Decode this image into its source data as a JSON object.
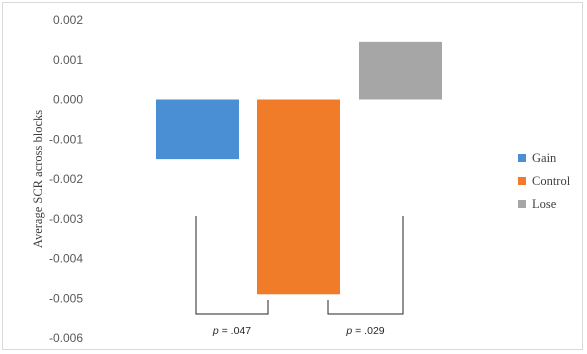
{
  "chart_data": {
    "type": "bar",
    "ylabel": "Average SCR across blocks",
    "ylim": [
      -0.006,
      0.002
    ],
    "yticks": [
      0.002,
      0.001,
      0.0,
      -0.001,
      -0.002,
      -0.003,
      -0.004,
      -0.005,
      -0.006
    ],
    "ytick_labels": [
      "0.002",
      "0.001",
      "0.000",
      "-0.001",
      "-0.002",
      "-0.003",
      "-0.004",
      "-0.005",
      "-0.006"
    ],
    "series": [
      {
        "name": "Gain",
        "value": -0.0015,
        "color": "#4A8FD4"
      },
      {
        "name": "Control",
        "value": -0.0049,
        "color": "#F07C2A"
      },
      {
        "name": "Lose",
        "value": 0.00145,
        "color": "#A6A6A6"
      }
    ],
    "grid": false,
    "legend_position": "right",
    "annotations": [
      {
        "from": "Gain",
        "to": "Control",
        "p_prefix": "p",
        "p_value": " = .047"
      },
      {
        "from": "Control",
        "to": "Lose",
        "p_prefix": "p",
        "p_value": " = .029"
      }
    ]
  }
}
